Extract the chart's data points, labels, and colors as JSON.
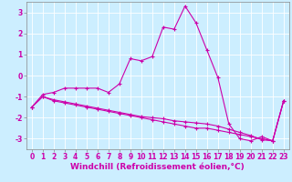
{
  "xlabel": "Windchill (Refroidissement éolien,°C)",
  "bg_color": "#cceeff",
  "line_color": "#cc00aa",
  "grid_color": "#ffffff",
  "line1_x": [
    0,
    1,
    2,
    3,
    4,
    5,
    6,
    7,
    8,
    9,
    10,
    11,
    12,
    13,
    14,
    15,
    16,
    17,
    18,
    19,
    20,
    21,
    22,
    23
  ],
  "line1_y": [
    -1.5,
    -0.9,
    -0.8,
    -0.6,
    -0.6,
    -0.6,
    -0.6,
    -0.8,
    -0.4,
    0.8,
    0.7,
    0.9,
    2.3,
    2.2,
    3.3,
    2.5,
    1.2,
    -0.1,
    -2.3,
    -3.0,
    -3.1,
    -2.9,
    -3.1,
    -1.2
  ],
  "line2_x": [
    0,
    1,
    2,
    3,
    4,
    5,
    6,
    7,
    8,
    9,
    10,
    11,
    12,
    13,
    14,
    15,
    16,
    17,
    18,
    19,
    20,
    21,
    22,
    23
  ],
  "line2_y": [
    -1.5,
    -1.0,
    -1.2,
    -1.3,
    -1.4,
    -1.5,
    -1.6,
    -1.7,
    -1.8,
    -1.9,
    -2.0,
    -2.1,
    -2.2,
    -2.3,
    -2.4,
    -2.5,
    -2.5,
    -2.6,
    -2.7,
    -2.8,
    -2.9,
    -3.0,
    -3.1,
    -1.2
  ],
  "line3_x": [
    0,
    1,
    2,
    3,
    4,
    5,
    6,
    7,
    8,
    9,
    10,
    11,
    12,
    13,
    14,
    15,
    16,
    17,
    18,
    19,
    20,
    21,
    22,
    23
  ],
  "line3_y": [
    -1.5,
    -1.0,
    -1.15,
    -1.25,
    -1.35,
    -1.45,
    -1.55,
    -1.65,
    -1.75,
    -1.85,
    -1.95,
    -2.0,
    -2.05,
    -2.15,
    -2.2,
    -2.25,
    -2.3,
    -2.4,
    -2.55,
    -2.7,
    -2.85,
    -3.05,
    -3.1,
    -1.2
  ],
  "ylim": [
    -3.5,
    3.5
  ],
  "xlim": [
    -0.5,
    23.5
  ],
  "xticks": [
    0,
    1,
    2,
    3,
    4,
    5,
    6,
    7,
    8,
    9,
    10,
    11,
    12,
    13,
    14,
    15,
    16,
    17,
    18,
    19,
    20,
    21,
    22,
    23
  ],
  "yticks": [
    -3,
    -2,
    -1,
    0,
    1,
    2,
    3
  ],
  "tick_fontsize": 5.5,
  "xlabel_fontsize": 6.5,
  "marker_size": 3,
  "linewidth": 0.8
}
